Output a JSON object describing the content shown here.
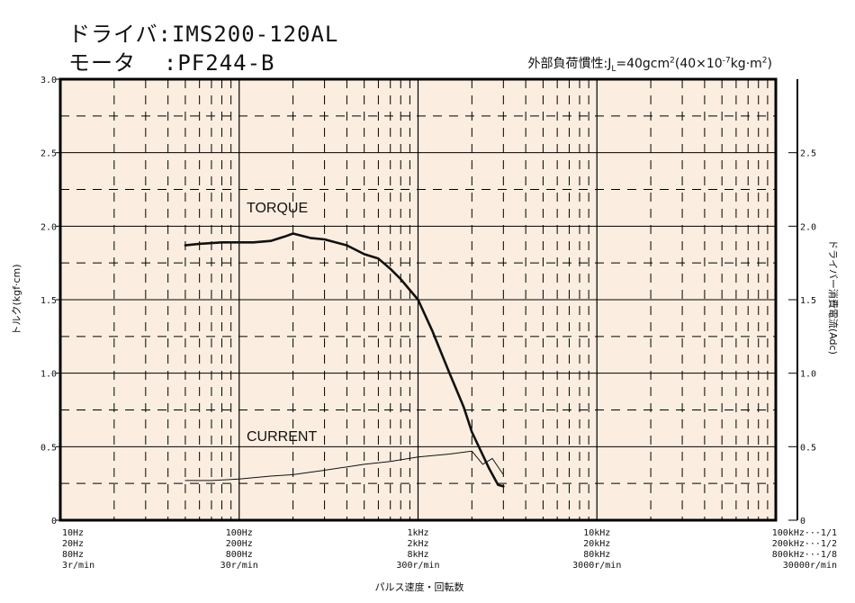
{
  "header": {
    "driver_label": "ドライバ",
    "driver_value": "IMS200-120AL",
    "motor_label": "モータ",
    "motor_value": "PF244-B",
    "sep": ":",
    "inertia": {
      "prefix": "外部負荷慣性:",
      "J": "J",
      "L": "L",
      "eq": "=40gcm",
      "sq1": "2",
      "mid": "(40×10",
      "exp": "-7",
      "unit": "kg·m",
      "sq2": "2",
      "end": ")"
    }
  },
  "chart_data": {
    "type": "line",
    "xscale": "log",
    "xlim": [
      10,
      100000
    ],
    "ylim_left": [
      0,
      3.0
    ],
    "ylim_right": [
      0,
      3.0
    ],
    "ylabel": "トルク(kgf·cm)",
    "ylabel_right": "ドライバー消費電流(Adc)",
    "xlabel": "パルス速度・回転数",
    "grid": true,
    "left_ticks": [
      "0",
      "0.5",
      "1.0",
      "1.5",
      "2.0",
      "2.5",
      "3.0"
    ],
    "right_ticks": [
      "0",
      "0.5",
      "1.0",
      "1.5",
      "2.0",
      "2.5"
    ],
    "x_tick_labels": [
      {
        "x": 10,
        "lines": [
          "10Hz",
          "20Hz",
          "80Hz",
          "3r/min"
        ]
      },
      {
        "x": 100,
        "lines": [
          "100Hz",
          "200Hz",
          "800Hz",
          "30r/min"
        ]
      },
      {
        "x": 1000,
        "lines": [
          "1kHz",
          "2kHz",
          "8kHz",
          "300r/min"
        ]
      },
      {
        "x": 10000,
        "lines": [
          "10kHz",
          "20kHz",
          "80kHz",
          "3000r/min"
        ]
      },
      {
        "x": 100000,
        "lines": [
          "100kHz···1/1",
          "200kHz···1/2",
          "800kHz···1/8",
          "30000r/min"
        ]
      }
    ],
    "series": [
      {
        "name": "TORQUE",
        "axis": "left",
        "x": [
          50,
          60,
          80,
          100,
          120,
          150,
          180,
          200,
          250,
          300,
          400,
          500,
          600,
          700,
          800,
          1000,
          1200,
          1500,
          1800,
          2000,
          2500,
          2800,
          3000
        ],
        "y": [
          1.87,
          1.88,
          1.89,
          1.89,
          1.89,
          1.9,
          1.93,
          1.95,
          1.92,
          1.91,
          1.87,
          1.81,
          1.78,
          1.71,
          1.64,
          1.5,
          1.29,
          1.0,
          0.77,
          0.6,
          0.35,
          0.24,
          0.23
        ]
      },
      {
        "name": "CURRENT",
        "axis": "right",
        "x": [
          50,
          70,
          100,
          150,
          200,
          300,
          500,
          700,
          1000,
          1500,
          2000,
          2300,
          2600,
          3000
        ],
        "y": [
          0.27,
          0.27,
          0.28,
          0.3,
          0.31,
          0.34,
          0.38,
          0.4,
          0.43,
          0.45,
          0.47,
          0.38,
          0.42,
          0.31
        ]
      }
    ]
  }
}
